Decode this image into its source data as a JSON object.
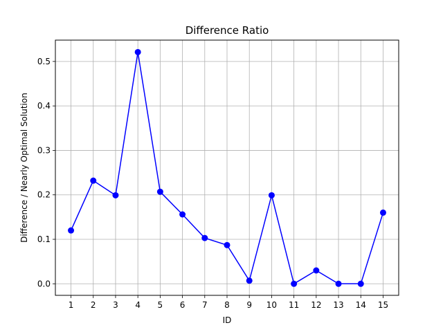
{
  "chart_data": {
    "type": "line",
    "title": "Difference Ratio",
    "xlabel": "ID",
    "ylabel": "Difference / Nearly Optimal Solution",
    "x": [
      1,
      2,
      3,
      4,
      5,
      6,
      7,
      8,
      9,
      10,
      11,
      12,
      13,
      14,
      15
    ],
    "xticks": [
      "1",
      "2",
      "3",
      "4",
      "5",
      "6",
      "7",
      "8",
      "9",
      "10",
      "11",
      "12",
      "13",
      "14",
      "15"
    ],
    "yticks": [
      0.0,
      0.1,
      0.2,
      0.3,
      0.4,
      0.5
    ],
    "ytick_labels": [
      "0.0",
      "0.1",
      "0.2",
      "0.3",
      "0.4",
      "0.5"
    ],
    "xlim": [
      0.3,
      15.7
    ],
    "ylim": [
      -0.026,
      0.548
    ],
    "grid": true,
    "series": [
      {
        "values": [
          0.12,
          0.232,
          0.199,
          0.521,
          0.207,
          0.156,
          0.103,
          0.087,
          0.007,
          0.199,
          0.0,
          0.03,
          0.0,
          0.0,
          0.16
        ],
        "color": "#0000ff",
        "marker": "circle"
      }
    ]
  }
}
